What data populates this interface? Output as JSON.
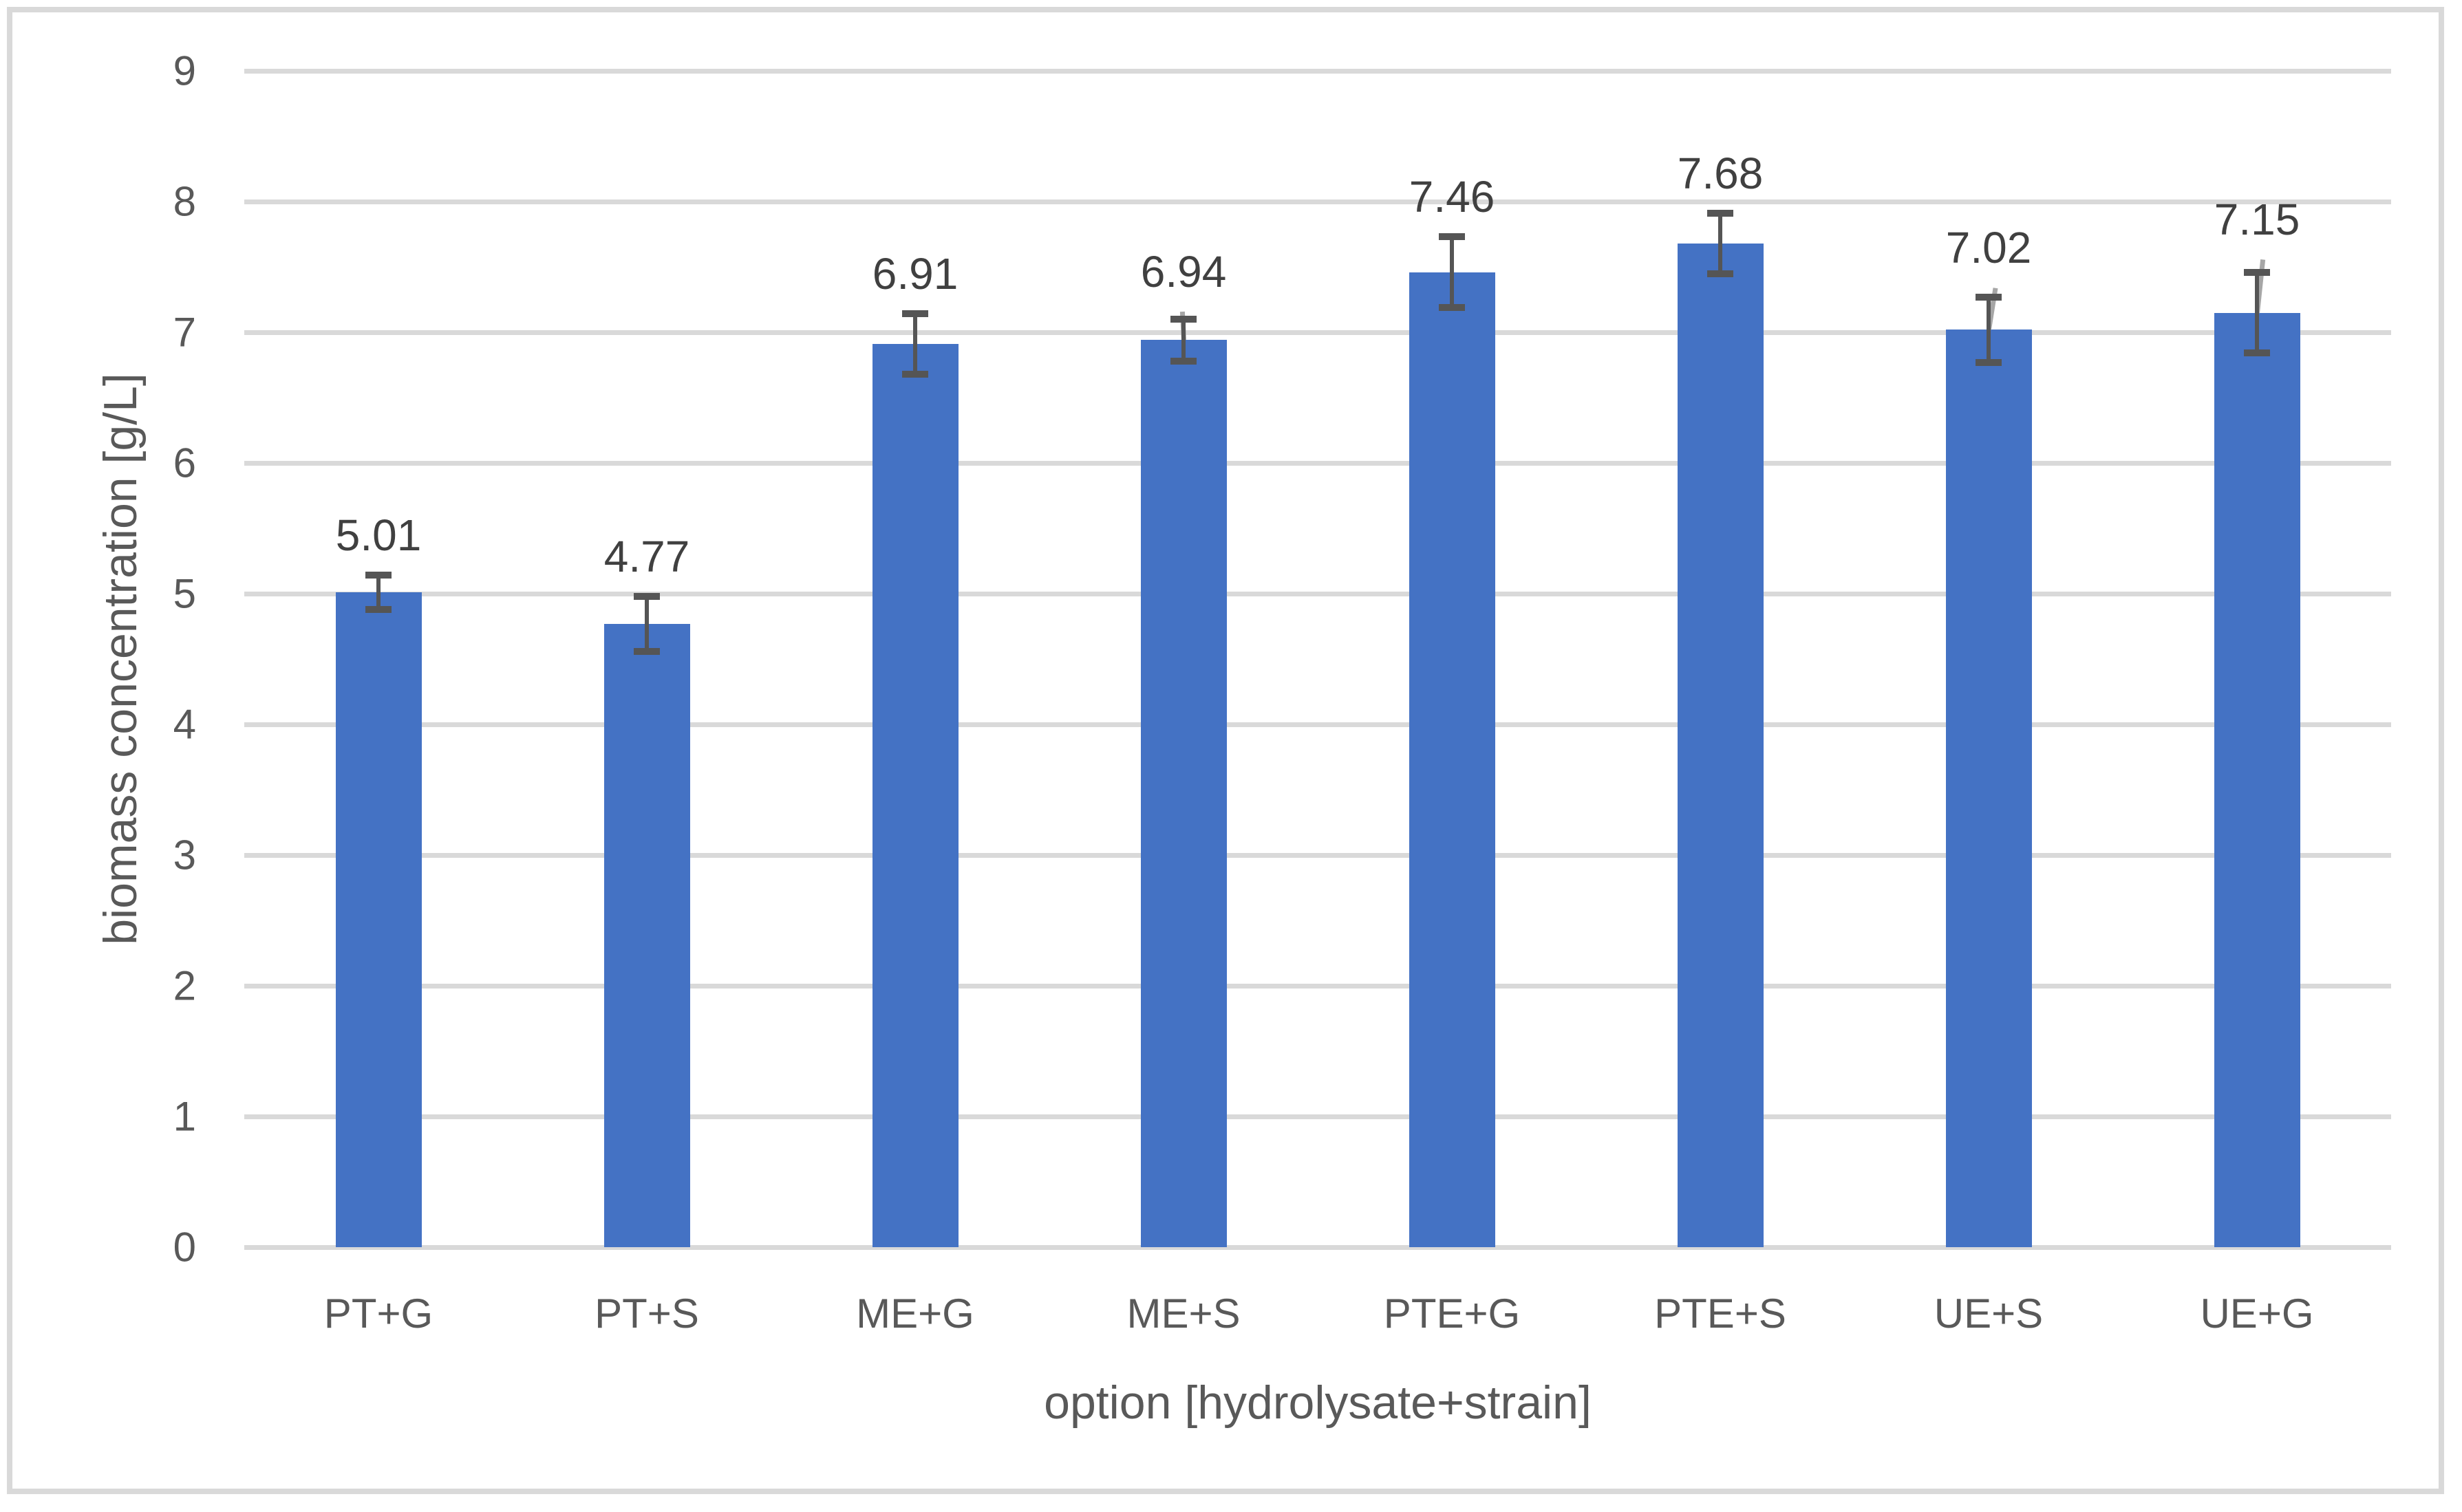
{
  "chart_data": {
    "type": "bar",
    "title": "",
    "categories": [
      "PT+G",
      "PT+S",
      "ME+G",
      "ME+S",
      "PTE+G",
      "PTE+S",
      "UE+S",
      "UE+G"
    ],
    "values": [
      5.01,
      4.77,
      6.91,
      6.94,
      7.46,
      7.68,
      7.02,
      7.15
    ],
    "data_labels": [
      "5.01",
      "4.77",
      "6.91",
      "6.94",
      "7.46",
      "7.68",
      "7.02",
      "7.15"
    ],
    "error_bars_plus_minus": [
      0.13,
      0.21,
      0.23,
      0.16,
      0.27,
      0.23,
      0.25,
      0.31
    ],
    "secondary_error_up": [
      null,
      null,
      null,
      0.22,
      null,
      null,
      0.32,
      0.41
    ],
    "xlabel": "option [hydrolysate+strain]",
    "ylabel": "biomass concentration [g/L]",
    "ylim": [
      0,
      9
    ],
    "yticks": [
      0,
      1,
      2,
      3,
      4,
      5,
      6,
      7,
      8,
      9
    ],
    "grid": true,
    "legend": "none",
    "colors": {
      "bar": "#4472C4",
      "error_bar": "#555555",
      "secondary_error_line": "#A6A6A6",
      "gridline": "#D9D9D9",
      "data_label_text": "#404040",
      "axis_text": "#595959",
      "chart_border": "#D9D9D9",
      "background": "#FFFFFF"
    }
  }
}
